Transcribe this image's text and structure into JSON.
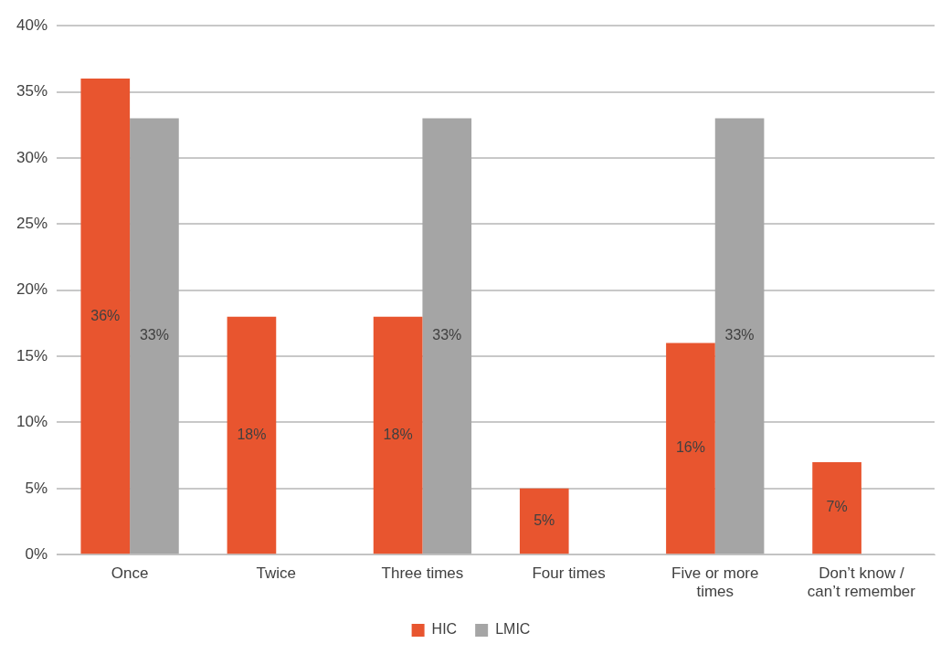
{
  "chart_data": {
    "type": "bar",
    "categories": [
      "Once",
      "Twice",
      "Three times",
      "Four times",
      "Five or more times",
      "Don’t know / can’t remember"
    ],
    "series": [
      {
        "name": "HIC",
        "color": "#e8552f",
        "values": [
          36,
          18,
          18,
          5,
          16,
          7
        ],
        "value_labels": [
          "36%",
          "18%",
          "18%",
          "5%",
          "16%",
          "7%"
        ]
      },
      {
        "name": "LMIC",
        "color": "#a5a5a5",
        "values": [
          33,
          0,
          33,
          0,
          33,
          0
        ],
        "value_labels": [
          "33%",
          null,
          "33%",
          null,
          "33%",
          null
        ]
      }
    ],
    "ylim": [
      0,
      40
    ],
    "yticks": [
      {
        "value": 0,
        "label": "0%"
      },
      {
        "value": 5,
        "label": "5%"
      },
      {
        "value": 10,
        "label": "10%"
      },
      {
        "value": 15,
        "label": "15%"
      },
      {
        "value": 20,
        "label": "20%"
      },
      {
        "value": 25,
        "label": "25%"
      },
      {
        "value": 30,
        "label": "30%"
      },
      {
        "value": 35,
        "label": "35%"
      },
      {
        "value": 40,
        "label": "40%"
      }
    ],
    "grid": "y",
    "legend": "bottom"
  }
}
